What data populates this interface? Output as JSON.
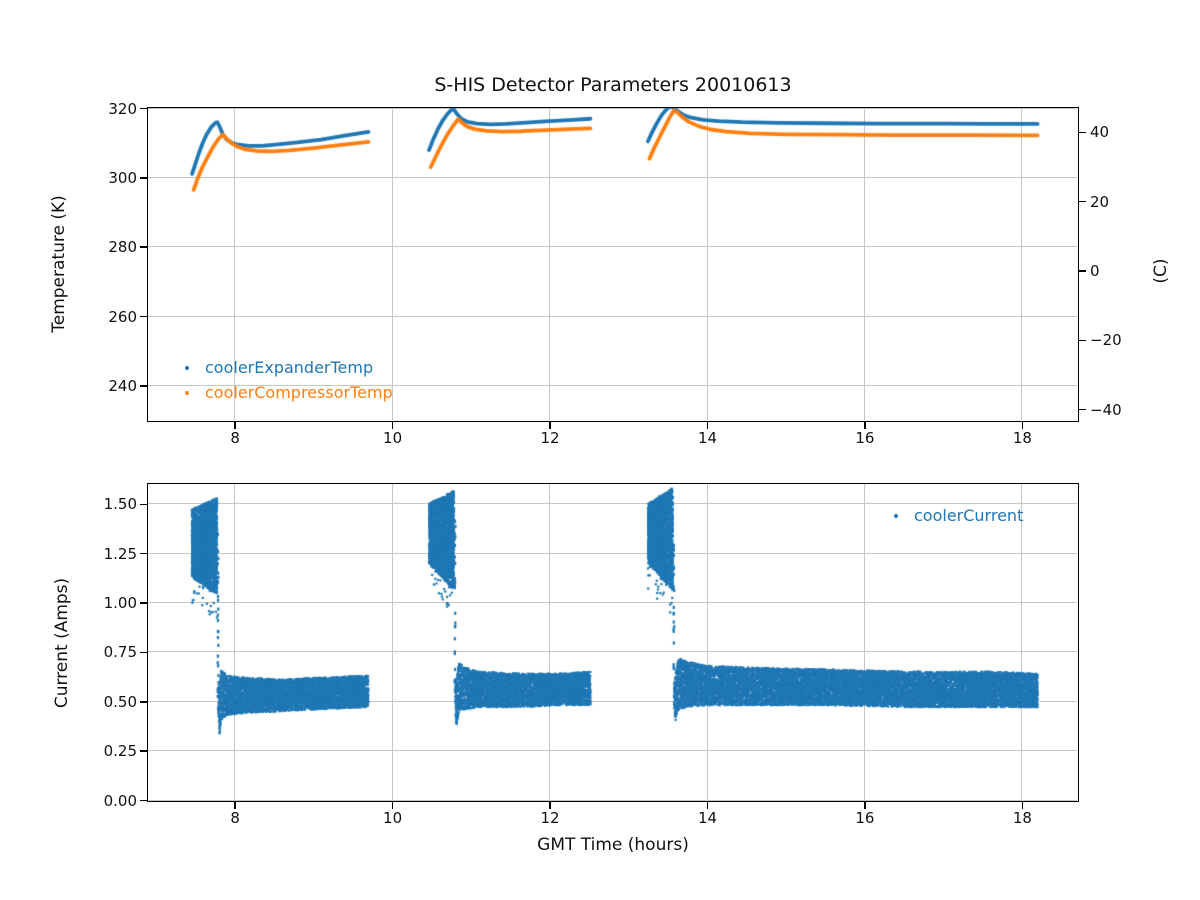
{
  "colors": {
    "blue": "#1f77b4",
    "orange": "#ff7f0e",
    "grid": "#c6c6c6",
    "axis": "#000000"
  },
  "chart_data": [
    {
      "type": "scatter",
      "title": "S-HIS Detector Parameters 20010613",
      "ylabel": "Temperature (K)",
      "ylabel_right": "(C)",
      "xlim": [
        6.9,
        18.7
      ],
      "ylim": [
        230,
        320
      ],
      "grid": true,
      "legend_position": "lower-left",
      "xtick_values": [
        8,
        10,
        12,
        14,
        16,
        18
      ],
      "xtick_labels": [
        "8",
        "10",
        "12",
        "14",
        "16",
        "18"
      ],
      "ytick_values": [
        320,
        300,
        280,
        260,
        240
      ],
      "ytick_labels": [
        "320",
        "300",
        "280",
        "260",
        "240"
      ],
      "ytick_right_values_C": [
        40,
        20,
        0,
        -20,
        -40
      ],
      "ytick_right_labels": [
        "40",
        "20",
        "0",
        "−20",
        "−40"
      ],
      "series": [
        {
          "name": "coolerExpanderTemp",
          "color": "#1f77b4",
          "points": [
            [
              7.46,
              301.0
            ],
            [
              7.5,
              303.8
            ],
            [
              7.55,
              307.2
            ],
            [
              7.6,
              310.2
            ],
            [
              7.65,
              312.6
            ],
            [
              7.7,
              314.4
            ],
            [
              7.75,
              315.6
            ],
            [
              7.78,
              315.9
            ],
            [
              7.81,
              314.6
            ],
            [
              7.85,
              312.4
            ],
            [
              7.9,
              310.9
            ],
            [
              7.97,
              309.9
            ],
            [
              8.05,
              309.4
            ],
            [
              8.18,
              309.1
            ],
            [
              8.35,
              309.1
            ],
            [
              8.55,
              309.5
            ],
            [
              8.8,
              310.1
            ],
            [
              9.1,
              310.9
            ],
            [
              9.4,
              312.0
            ],
            [
              9.7,
              313.1
            ],
            null,
            [
              10.47,
              307.9
            ],
            [
              10.52,
              310.8
            ],
            [
              10.58,
              313.8
            ],
            [
              10.64,
              316.3
            ],
            [
              10.7,
              318.2
            ],
            [
              10.75,
              319.4
            ],
            [
              10.78,
              319.8
            ],
            [
              10.82,
              318.4
            ],
            [
              10.88,
              316.9
            ],
            [
              10.96,
              316.0
            ],
            [
              11.08,
              315.5
            ],
            [
              11.25,
              315.3
            ],
            [
              11.45,
              315.4
            ],
            [
              11.7,
              315.8
            ],
            [
              12.0,
              316.2
            ],
            [
              12.3,
              316.6
            ],
            [
              12.52,
              316.9
            ],
            null,
            [
              13.25,
              310.4
            ],
            [
              13.3,
              312.9
            ],
            [
              13.36,
              315.5
            ],
            [
              13.42,
              317.8
            ],
            [
              13.48,
              319.5
            ],
            [
              13.53,
              320.4
            ],
            [
              13.57,
              320.2
            ],
            [
              13.62,
              319.2
            ],
            [
              13.7,
              318.0
            ],
            [
              13.8,
              317.2
            ],
            [
              13.95,
              316.6
            ],
            [
              14.15,
              316.2
            ],
            [
              14.45,
              315.9
            ],
            [
              14.9,
              315.7
            ],
            [
              15.5,
              315.6
            ],
            [
              16.2,
              315.5
            ],
            [
              17.0,
              315.5
            ],
            [
              17.6,
              315.4
            ],
            [
              18.2,
              315.4
            ]
          ]
        },
        {
          "name": "coolerCompressorTemp",
          "color": "#ff7f0e",
          "points": [
            [
              7.48,
              296.4
            ],
            [
              7.53,
              299.6
            ],
            [
              7.59,
              302.9
            ],
            [
              7.66,
              306.0
            ],
            [
              7.73,
              308.9
            ],
            [
              7.8,
              311.2
            ],
            [
              7.85,
              312.3
            ],
            [
              7.89,
              311.4
            ],
            [
              7.95,
              310.0
            ],
            [
              8.03,
              308.9
            ],
            [
              8.13,
              308.1
            ],
            [
              8.28,
              307.6
            ],
            [
              8.48,
              307.5
            ],
            [
              8.7,
              307.8
            ],
            [
              9.0,
              308.4
            ],
            [
              9.3,
              309.2
            ],
            [
              9.7,
              310.2
            ],
            null,
            [
              10.49,
              302.9
            ],
            [
              10.56,
              306.2
            ],
            [
              10.63,
              309.4
            ],
            [
              10.71,
              312.6
            ],
            [
              10.79,
              315.3
            ],
            [
              10.84,
              316.8
            ],
            [
              10.88,
              315.9
            ],
            [
              10.95,
              314.7
            ],
            [
              11.05,
              313.9
            ],
            [
              11.2,
              313.4
            ],
            [
              11.4,
              313.2
            ],
            [
              11.65,
              313.3
            ],
            [
              11.95,
              313.6
            ],
            [
              12.25,
              313.9
            ],
            [
              12.52,
              314.1
            ],
            null,
            [
              13.27,
              305.4
            ],
            [
              13.33,
              308.5
            ],
            [
              13.4,
              311.7
            ],
            [
              13.47,
              314.8
            ],
            [
              13.53,
              317.5
            ],
            [
              13.58,
              319.3
            ],
            [
              13.62,
              318.8
            ],
            [
              13.68,
              317.5
            ],
            [
              13.77,
              316.0
            ],
            [
              13.9,
              314.7
            ],
            [
              14.05,
              313.8
            ],
            [
              14.25,
              313.2
            ],
            [
              14.55,
              312.7
            ],
            [
              15.0,
              312.4
            ],
            [
              15.6,
              312.3
            ],
            [
              16.4,
              312.2
            ],
            [
              17.3,
              312.2
            ],
            [
              18.2,
              312.1
            ]
          ]
        }
      ]
    },
    {
      "type": "scatter",
      "xlabel": "GMT Time (hours)",
      "ylabel": "Current (Amps)",
      "xlim": [
        6.9,
        18.7
      ],
      "ylim": [
        0,
        1.6
      ],
      "grid": true,
      "legend_position": "upper-right",
      "xtick_values": [
        8,
        10,
        12,
        14,
        16,
        18
      ],
      "xtick_labels": [
        "8",
        "10",
        "12",
        "14",
        "16",
        "18"
      ],
      "ytick_values": [
        1.5,
        1.25,
        1.0,
        0.75,
        0.5,
        0.25,
        0.0
      ],
      "ytick_labels": [
        "1.50",
        "1.25",
        "1.00",
        "0.75",
        "0.50",
        "0.25",
        "0.00"
      ],
      "series": [
        {
          "name": "coolerCurrent",
          "color": "#1f77b4",
          "bursts": [
            {
              "x": [
                7.455,
                7.78
              ],
              "lo": [
                1.13,
                1.04
              ],
              "hi": [
                1.47,
                1.53
              ]
            },
            {
              "x": [
                10.47,
                10.79
              ],
              "lo": [
                1.2,
                1.06
              ],
              "hi": [
                1.5,
                1.57
              ]
            },
            {
              "x": [
                13.25,
                13.57
              ],
              "lo": [
                1.2,
                1.06
              ],
              "hi": [
                1.5,
                1.58
              ]
            }
          ],
          "trails": [
            {
              "x": 7.79,
              "y0": 0.45,
              "y1": 1.35,
              "n": 26
            },
            {
              "x": 10.8,
              "y0": 0.42,
              "y1": 1.42,
              "n": 26
            },
            {
              "x": 13.58,
              "y0": 0.46,
              "y1": 1.3,
              "n": 24
            }
          ],
          "bands": [
            [
              [
                7.795,
                0.42,
                0.6
              ],
              [
                7.81,
                0.33,
                0.58
              ],
              [
                7.83,
                0.4,
                0.66
              ],
              [
                7.9,
                0.43,
                0.63
              ],
              [
                8.1,
                0.44,
                0.62
              ],
              [
                8.6,
                0.45,
                0.61
              ],
              [
                9.1,
                0.46,
                0.62
              ],
              [
                9.7,
                0.47,
                0.63
              ]
            ],
            [
              [
                10.805,
                0.44,
                0.58
              ],
              [
                10.82,
                0.38,
                0.62
              ],
              [
                10.85,
                0.45,
                0.7
              ],
              [
                10.92,
                0.46,
                0.67
              ],
              [
                11.1,
                0.47,
                0.65
              ],
              [
                11.6,
                0.47,
                0.64
              ],
              [
                12.1,
                0.48,
                0.64
              ],
              [
                12.52,
                0.48,
                0.65
              ]
            ],
            [
              [
                13.585,
                0.45,
                0.6
              ],
              [
                13.6,
                0.4,
                0.64
              ],
              [
                13.64,
                0.46,
                0.72
              ],
              [
                13.75,
                0.47,
                0.7
              ],
              [
                14.0,
                0.48,
                0.68
              ],
              [
                14.6,
                0.48,
                0.67
              ],
              [
                15.6,
                0.48,
                0.66
              ],
              [
                16.6,
                0.47,
                0.65
              ],
              [
                17.6,
                0.47,
                0.65
              ],
              [
                18.2,
                0.47,
                0.64
              ]
            ]
          ]
        }
      ]
    }
  ]
}
